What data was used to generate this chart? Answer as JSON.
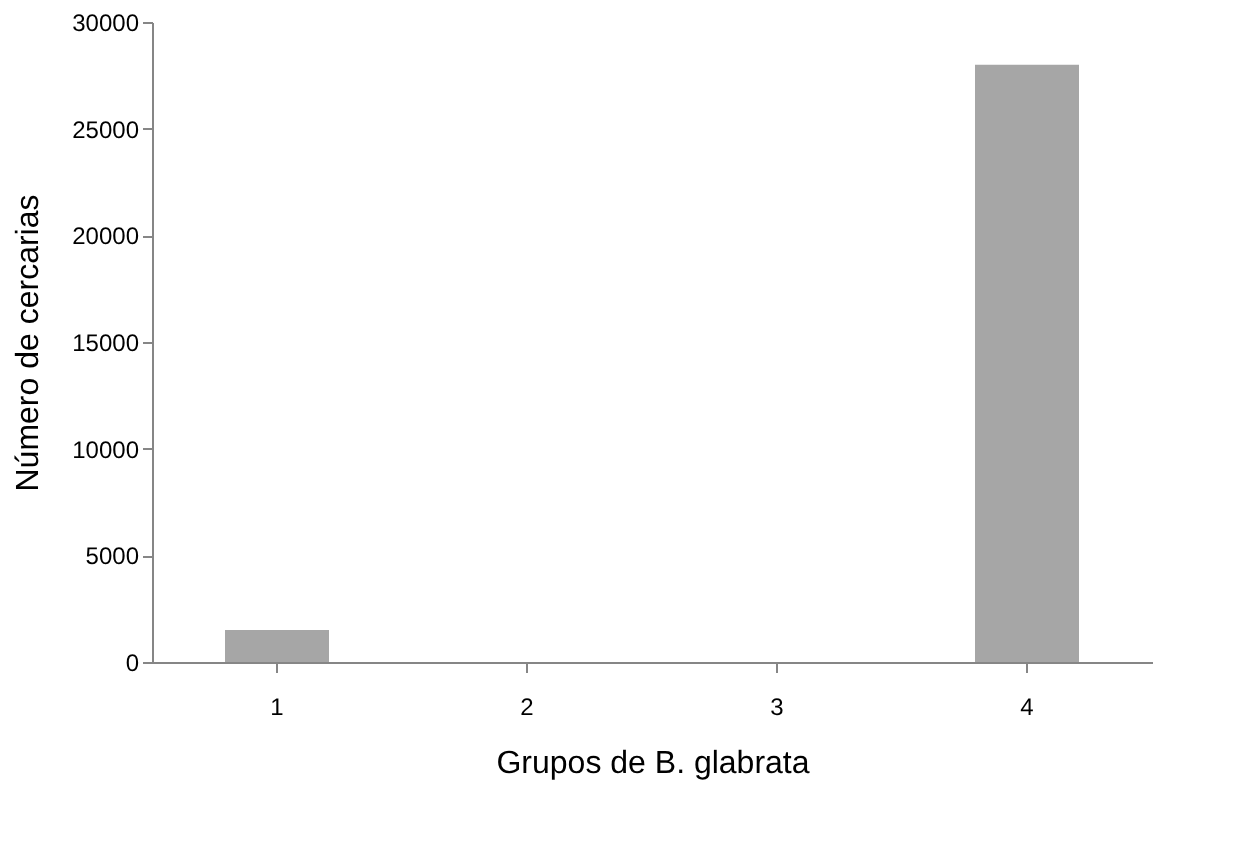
{
  "chart_data": {
    "type": "bar",
    "categories": [
      "1",
      "2",
      "3",
      "4"
    ],
    "values": [
      1500,
      0,
      0,
      28000
    ],
    "color": "#a6a6a6",
    "xlabel": "Grupos de B. glabrata",
    "ylabel": "Número de cercarias",
    "ylim": [
      0,
      30000
    ],
    "yticks": [
      0,
      5000,
      10000,
      15000,
      20000,
      25000,
      30000
    ],
    "grid": false
  }
}
